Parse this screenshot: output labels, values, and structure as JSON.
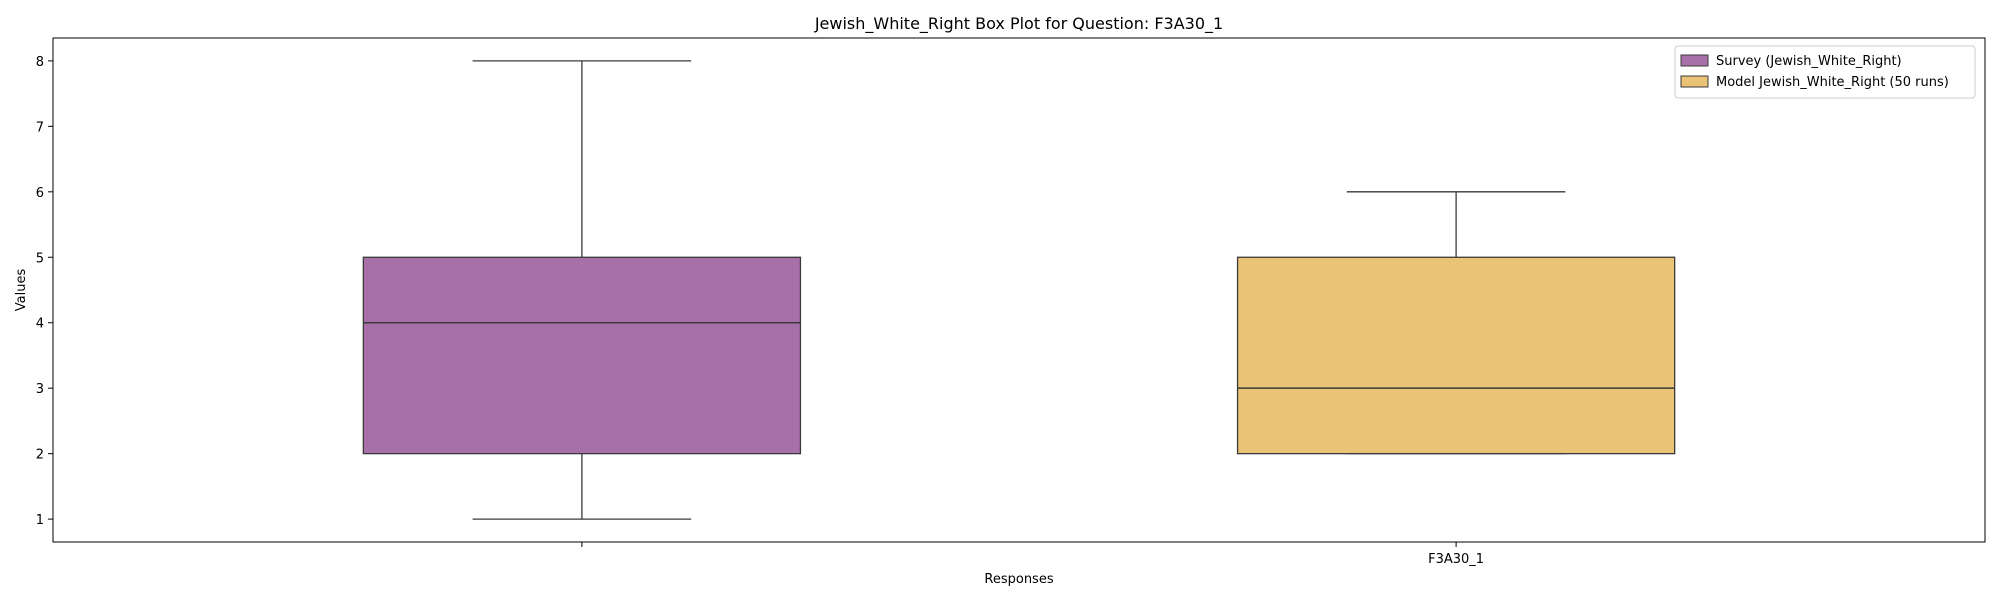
{
  "chart_data": {
    "type": "box",
    "title": "Jewish_White_Right Box Plot for Question: F3A30_1",
    "xlabel": "Responses",
    "ylabel": "Values",
    "categories": [
      "",
      "F3A30_1"
    ],
    "ylim": [
      0.65,
      8.35
    ],
    "yticks": [
      1,
      2,
      3,
      4,
      5,
      6,
      7,
      8
    ],
    "grid": false,
    "legend_position": "top-right",
    "series": [
      {
        "name": "Survey (Jewish_White_Right)",
        "color": "#a870a8",
        "whisker_low": 1,
        "q1": 2,
        "median": 4,
        "q3": 5,
        "whisker_high": 8
      },
      {
        "name": "Model Jewish_White_Right (50 runs)",
        "color": "#ebc377",
        "whisker_low": 2,
        "q1": 2,
        "median": 3,
        "q3": 5,
        "whisker_high": 6
      }
    ]
  }
}
